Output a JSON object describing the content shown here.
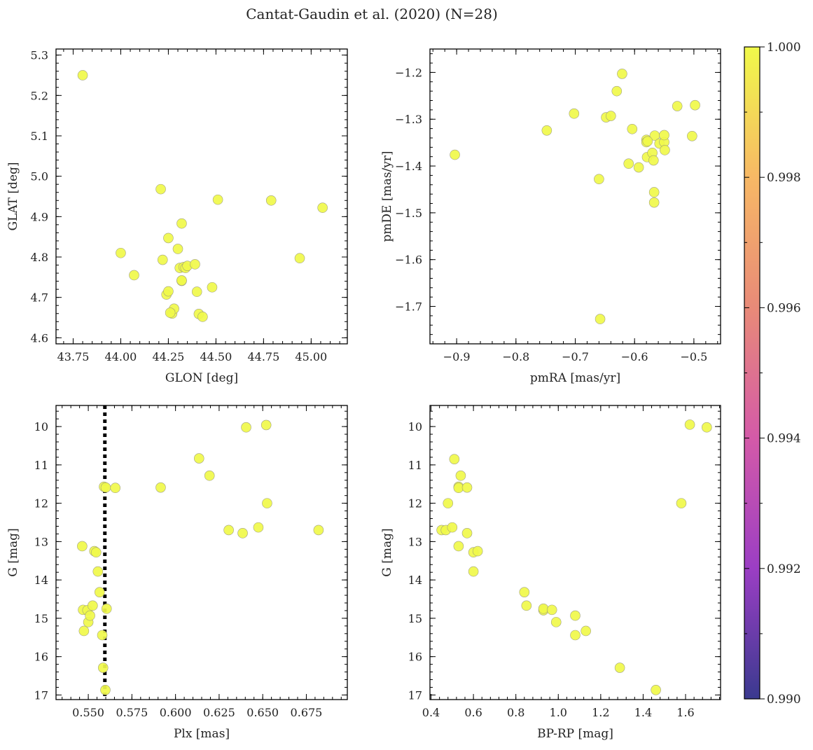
{
  "chart_data": {
    "type": "scatter",
    "title": "Cantat-Gaudin et al. (2020) (N=28)",
    "point_color": "#f0f94a",
    "colorbar": {
      "cmap": "plasma",
      "vmin": 0.99,
      "vmax": 1.0,
      "tick_labels": [
        "0.990",
        "0.992",
        "0.994",
        "0.996",
        "0.998",
        "1.000"
      ],
      "colors": [
        "#3a3a8f",
        "#9b3ec4",
        "#d45aa8",
        "#e88a78",
        "#f7b865",
        "#f0f94a"
      ]
    },
    "panels": [
      {
        "id": "glon-glat",
        "xlabel": "GLON [deg]",
        "ylabel": "GLAT [deg]",
        "xlim": [
          43.66,
          45.19
        ],
        "ylim": [
          4.585,
          5.315
        ],
        "invert_y": false,
        "xticks": [
          43.75,
          44.0,
          44.25,
          44.5,
          44.75,
          45.0
        ],
        "xtick_labels": [
          "43.75",
          "44.00",
          "44.25",
          "44.50",
          "44.75",
          "45.00"
        ],
        "yticks": [
          4.6,
          4.7,
          4.8,
          4.9,
          5.0,
          5.1,
          5.2,
          5.3
        ],
        "ytick_labels": [
          "4.6",
          "4.7",
          "4.8",
          "4.9",
          "5.0",
          "5.1",
          "5.2",
          "5.3"
        ],
        "vline": null,
        "x": [
          43.8,
          44.0,
          44.07,
          44.21,
          44.22,
          44.24,
          44.25,
          44.25,
          44.27,
          44.28,
          44.3,
          44.31,
          44.32,
          44.32,
          44.33,
          44.34,
          44.35,
          44.39,
          44.4,
          44.41,
          44.43,
          44.48,
          44.51,
          44.79,
          44.94,
          45.06,
          44.32,
          44.26
        ],
        "y": [
          5.25,
          4.81,
          4.755,
          4.968,
          4.793,
          4.707,
          4.847,
          4.715,
          4.66,
          4.672,
          4.82,
          4.773,
          4.741,
          4.883,
          4.775,
          4.773,
          4.778,
          4.782,
          4.714,
          4.659,
          4.652,
          4.725,
          4.942,
          4.94,
          4.797,
          4.922,
          4.742,
          4.662
        ]
      },
      {
        "id": "pm",
        "xlabel": "pmRA [mas/yr]",
        "ylabel": "pmDE [mas/yr]",
        "xlim": [
          -0.945,
          -0.455
        ],
        "ylim": [
          -1.78,
          -1.15
        ],
        "invert_y": false,
        "xticks": [
          -0.9,
          -0.8,
          -0.7,
          -0.6,
          -0.5
        ],
        "xtick_labels": [
          "−0.9",
          "−0.8",
          "−0.7",
          "−0.6",
          "−0.5"
        ],
        "yticks": [
          -1.7,
          -1.6,
          -1.5,
          -1.4,
          -1.3,
          -1.2
        ],
        "ytick_labels": [
          "−1.7",
          "−1.6",
          "−1.5",
          "−1.4",
          "−1.3",
          "−1.2"
        ],
        "vline": null,
        "x": [
          -0.903,
          -0.748,
          -0.702,
          -0.66,
          -0.658,
          -0.648,
          -0.64,
          -0.63,
          -0.621,
          -0.61,
          -0.604,
          -0.593,
          -0.58,
          -0.58,
          -0.579,
          -0.57,
          -0.568,
          -0.567,
          -0.567,
          -0.566,
          -0.558,
          -0.55,
          -0.55,
          -0.549,
          -0.528,
          -0.503,
          -0.498,
          -0.578
        ],
        "y": [
          -1.376,
          -1.324,
          -1.288,
          -1.428,
          -1.727,
          -1.296,
          -1.293,
          -1.24,
          -1.203,
          -1.395,
          -1.321,
          -1.403,
          -1.344,
          -1.349,
          -1.381,
          -1.372,
          -1.388,
          -1.478,
          -1.456,
          -1.335,
          -1.352,
          -1.349,
          -1.334,
          -1.366,
          -1.272,
          -1.336,
          -1.27,
          -1.347
        ]
      },
      {
        "id": "plx-g",
        "xlabel": "Plx [mas]",
        "ylabel": "G [mag]",
        "xlim": [
          0.5315,
          0.6985
        ],
        "ylim": [
          9.45,
          17.12
        ],
        "invert_y": true,
        "xticks": [
          0.55,
          0.575,
          0.6,
          0.625,
          0.65,
          0.675
        ],
        "xtick_labels": [
          "0.550",
          "0.575",
          "0.600",
          "0.625",
          "0.650",
          "0.675"
        ],
        "yticks": [
          10,
          11,
          12,
          13,
          14,
          15,
          16,
          17
        ],
        "ytick_labels": [
          "10",
          "11",
          "12",
          "13",
          "14",
          "15",
          "16",
          "17"
        ],
        "vline": 0.5595,
        "x": [
          0.5465,
          0.547,
          0.5475,
          0.5495,
          0.55,
          0.551,
          0.5525,
          0.5535,
          0.5545,
          0.5555,
          0.5565,
          0.558,
          0.5585,
          0.559,
          0.5598,
          0.56,
          0.5605,
          0.5655,
          0.5915,
          0.6135,
          0.6195,
          0.6305,
          0.6385,
          0.6405,
          0.6475,
          0.652,
          0.6525,
          0.682
        ],
        "y": [
          13.12,
          14.78,
          15.33,
          14.79,
          15.1,
          14.93,
          14.67,
          13.25,
          13.28,
          13.78,
          14.32,
          15.44,
          16.29,
          11.57,
          16.87,
          11.59,
          14.75,
          11.6,
          11.59,
          10.83,
          11.28,
          12.7,
          12.78,
          10.02,
          12.63,
          9.96,
          12.0,
          12.7
        ]
      },
      {
        "id": "color-g",
        "xlabel": "BP-RP [mag]",
        "ylabel": "G [mag]",
        "xlim": [
          0.395,
          1.765
        ],
        "ylim": [
          9.45,
          17.12
        ],
        "invert_y": true,
        "xticks": [
          0.4,
          0.6,
          0.8,
          1.0,
          1.2,
          1.4,
          1.6
        ],
        "xtick_labels": [
          "0.4",
          "0.6",
          "0.8",
          "1.0",
          "1.2",
          "1.4",
          "1.6"
        ],
        "yticks": [
          10,
          11,
          12,
          13,
          14,
          15,
          16,
          17
        ],
        "ytick_labels": [
          "10",
          "11",
          "12",
          "13",
          "14",
          "15",
          "16",
          "17"
        ],
        "vline": null,
        "x": [
          0.45,
          0.47,
          0.48,
          0.5,
          0.51,
          0.53,
          0.53,
          0.53,
          0.54,
          0.57,
          0.57,
          0.6,
          0.6,
          0.62,
          0.84,
          0.85,
          0.93,
          0.93,
          0.97,
          0.99,
          1.08,
          1.08,
          1.13,
          1.29,
          1.46,
          1.58,
          1.62,
          1.7
        ],
        "y": [
          12.7,
          12.7,
          12.0,
          12.63,
          10.85,
          11.57,
          11.6,
          13.12,
          11.28,
          11.59,
          12.78,
          13.28,
          13.78,
          13.25,
          14.32,
          14.67,
          14.79,
          14.75,
          14.78,
          15.1,
          14.93,
          15.44,
          15.33,
          16.29,
          16.87,
          12.0,
          9.95,
          10.02
        ]
      }
    ]
  }
}
